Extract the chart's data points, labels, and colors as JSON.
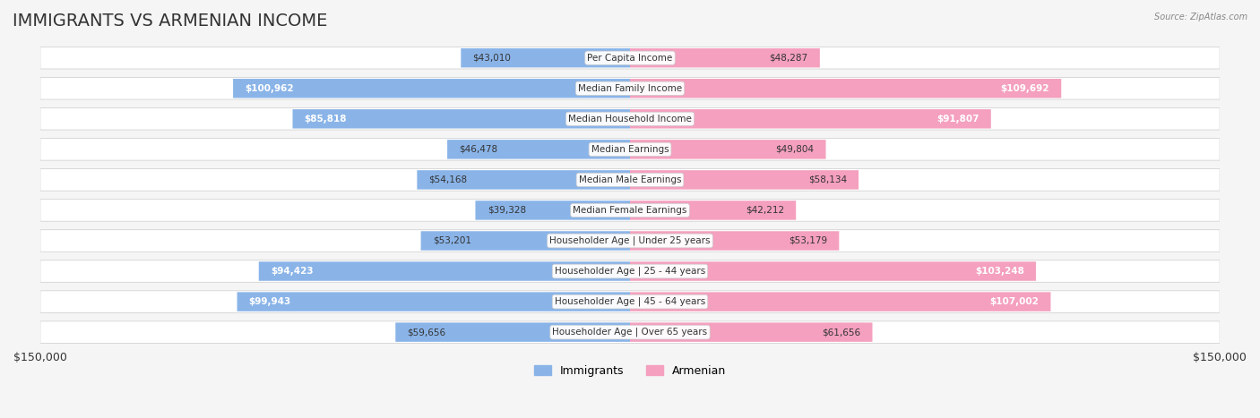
{
  "title": "IMMIGRANTS VS ARMENIAN INCOME",
  "source": "Source: ZipAtlas.com",
  "categories": [
    "Per Capita Income",
    "Median Family Income",
    "Median Household Income",
    "Median Earnings",
    "Median Male Earnings",
    "Median Female Earnings",
    "Householder Age | Under 25 years",
    "Householder Age | 25 - 44 years",
    "Householder Age | 45 - 64 years",
    "Householder Age | Over 65 years"
  ],
  "immigrants": [
    43010,
    100962,
    85818,
    46478,
    54168,
    39328,
    53201,
    94423,
    99943,
    59656
  ],
  "armenian": [
    48287,
    109692,
    91807,
    49804,
    58134,
    42212,
    53179,
    103248,
    107002,
    61656
  ],
  "immigrant_labels": [
    "$43,010",
    "$100,962",
    "$85,818",
    "$46,478",
    "$54,168",
    "$39,328",
    "$53,201",
    "$94,423",
    "$99,943",
    "$59,656"
  ],
  "armenian_labels": [
    "$48,287",
    "$109,692",
    "$91,807",
    "$49,804",
    "$58,134",
    "$42,212",
    "$53,179",
    "$103,248",
    "$107,002",
    "$61,656"
  ],
  "immigrant_color": "#8ab4e8",
  "armenian_color": "#f4a0be",
  "immigrant_color_dark": "#5b8fcf",
  "armenian_color_dark": "#e8607e",
  "max_value": 150000,
  "background_color": "#f5f5f5",
  "row_bg_color": "#ffffff",
  "row_alt_bg": "#f0f0f0",
  "title_fontsize": 14,
  "label_fontsize": 7.5,
  "category_fontsize": 7.5
}
